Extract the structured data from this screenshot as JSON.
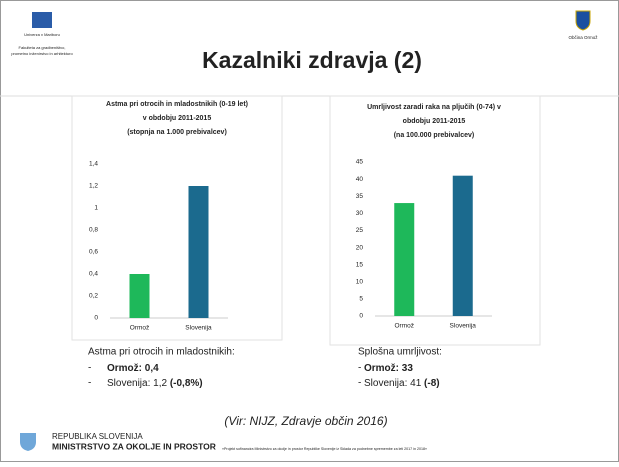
{
  "header": {
    "university": "Univerza v Mariboru",
    "faculty": [
      "Fakulteta za gradbeništvo,",
      "prometno inženirstvo in arhitekturo"
    ],
    "municipality": "Občina Ormož",
    "title": "Kazalniki zdravja (2)"
  },
  "chart_data": [
    {
      "type": "bar",
      "title_lines": [
        "Astma pri otrocih in mladostnikih (0-19 let)",
        "v obdobju 2011-2015",
        "(stopnja na 1.000 prebivalcev)"
      ],
      "categories": [
        "Ormož",
        "Slovenija"
      ],
      "values": [
        0.4,
        1.2
      ],
      "colors": [
        "#1eb85a",
        "#1b6a8e"
      ],
      "ylim": [
        0,
        1.4
      ],
      "yticks": [
        0,
        {
          "value": 0.2,
          "label": "0,2"
        },
        {
          "value": 0.4,
          "label": "0,4"
        },
        {
          "value": 0.6,
          "label": "0,6"
        },
        {
          "value": 0.8,
          "label": "0,8"
        },
        1,
        {
          "value": 1.2,
          "label": "1,2"
        },
        {
          "value": 1.4,
          "label": "1,4"
        }
      ],
      "grid": false
    },
    {
      "type": "bar",
      "title_lines": [
        "Umrljivost zaradi raka na pljučih (0-74) v",
        "obdobju 2011-2015",
        "(na 100.000 prebivalcev)"
      ],
      "categories": [
        "Ormož",
        "Slovenija"
      ],
      "values": [
        33,
        41
      ],
      "colors": [
        "#1eb85a",
        "#1b6a8e"
      ],
      "ylim": [
        0,
        45
      ],
      "yticks": [
        0,
        5,
        10,
        15,
        20,
        25,
        30,
        35,
        40,
        45
      ],
      "grid": false
    }
  ],
  "notes": [
    {
      "heading": "Astma pri otrocih in mladostnikih:",
      "items": [
        {
          "marker": "-",
          "parts": [
            {
              "text": "Ormož: 0,4",
              "bold": true
            }
          ]
        },
        {
          "marker": "-",
          "parts": [
            {
              "text": "Slovenija: 1,2 ",
              "bold": false
            },
            {
              "text": "(-0,8%)",
              "bold": true
            }
          ]
        }
      ]
    },
    {
      "heading": "Splošna umrljivost:",
      "items": [
        {
          "marker": "-",
          "parts": [
            {
              "text": "Ormož: 33",
              "bold": true
            }
          ]
        },
        {
          "marker": "-",
          "parts": [
            {
              "text": "Slovenija: 41 ",
              "bold": false
            },
            {
              "text": "(-8)",
              "bold": true
            }
          ]
        }
      ]
    }
  ],
  "source": "(Vir: NIJZ, Zdravje občin 2016)",
  "footer": {
    "line1": "REPUBLIKA SLOVENIJA",
    "line2": "MINISTRSTVO ZA OKOLJE IN PROSTOR",
    "project": "»Projekt sofinancira Ministrstvo za okolje in prostor Republike Slovenije iz Sklada za podnebne spremembe za leti 2017 in 2018«"
  }
}
